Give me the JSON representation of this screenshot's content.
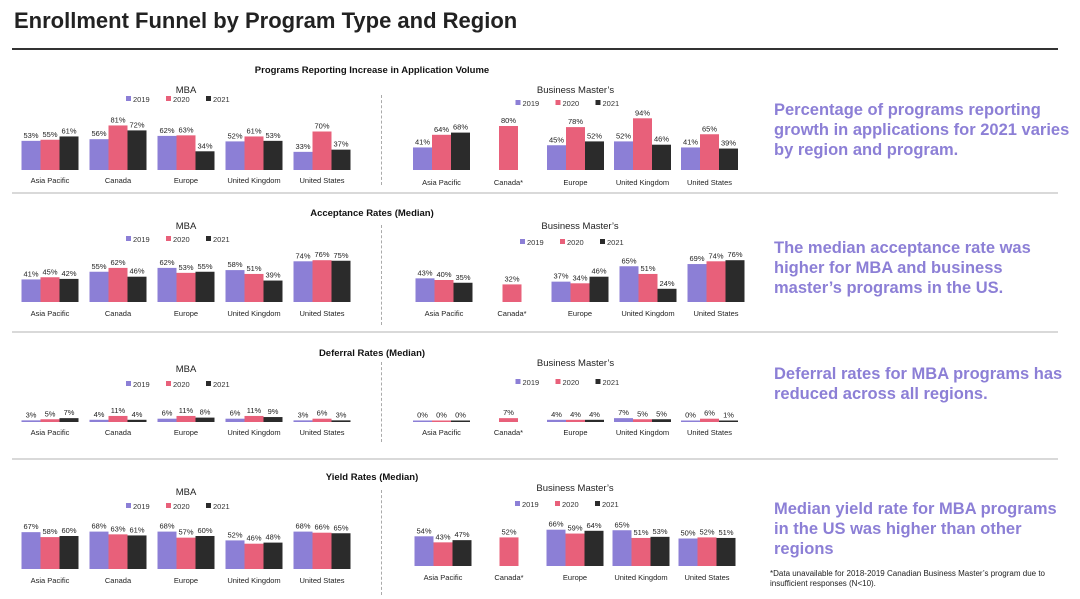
{
  "title": "Enrollment Funnel by Program Type and Region",
  "legend": [
    {
      "label": "2019",
      "color": "#8c7fd6"
    },
    {
      "label": "2020",
      "color": "#e8607a"
    },
    {
      "label": "2021",
      "color": "#2b2b2b"
    }
  ],
  "colors": {
    "y2019": "#8c7fd6",
    "y2020": "#e8607a",
    "y2021": "#2b2b2b",
    "callout": "#8c7fd6"
  },
  "callouts": [
    "Percentage of programs reporting growth in applications for 2021 varies by region and program.",
    "The median acceptance rate was higher for MBA and business master’s programs in the US.",
    "Deferral rates for MBA programs has reduced across all regions.",
    "Median yield rate for MBA programs in the US was higher than other regions"
  ],
  "footnote": "*Data unavailable for 2018-2019 Canadian Business Master’s program due to insufficient responses (N<10).",
  "chart_data": [
    {
      "type": "bar",
      "section": "Programs Reporting Increase in Application Volume",
      "title": "MBA",
      "categories": [
        "Asia Pacific",
        "Canada",
        "Europe",
        "United Kingdom",
        "United States"
      ],
      "series": [
        {
          "name": "2019",
          "values": [
            53,
            56,
            62,
            52,
            33
          ]
        },
        {
          "name": "2020",
          "values": [
            55,
            81,
            63,
            61,
            70
          ]
        },
        {
          "name": "2021",
          "values": [
            61,
            72,
            34,
            53,
            37
          ]
        }
      ],
      "ylim": [
        0,
        100
      ]
    },
    {
      "type": "bar",
      "section": "Programs Reporting Increase in Application Volume",
      "title": "Business Master’s",
      "categories": [
        "Asia Pacific",
        "Canada*",
        "Europe",
        "United Kingdom",
        "United States"
      ],
      "series": [
        {
          "name": "2019",
          "values": [
            41,
            null,
            45,
            52,
            41
          ]
        },
        {
          "name": "2020",
          "values": [
            64,
            80,
            78,
            94,
            65
          ]
        },
        {
          "name": "2021",
          "values": [
            68,
            null,
            52,
            46,
            39
          ]
        }
      ],
      "ylim": [
        0,
        100
      ]
    },
    {
      "type": "bar",
      "section": "Acceptance Rates (Median)",
      "title": "MBA",
      "categories": [
        "Asia Pacific",
        "Canada",
        "Europe",
        "United Kingdom",
        "United States"
      ],
      "series": [
        {
          "name": "2019",
          "values": [
            41,
            55,
            62,
            58,
            74
          ]
        },
        {
          "name": "2020",
          "values": [
            45,
            62,
            53,
            51,
            76
          ]
        },
        {
          "name": "2021",
          "values": [
            42,
            46,
            55,
            39,
            75
          ]
        }
      ],
      "ylim": [
        0,
        100
      ]
    },
    {
      "type": "bar",
      "section": "Acceptance Rates (Median)",
      "title": "Business Master’s",
      "categories": [
        "Asia Pacific",
        "Canada*",
        "Europe",
        "United Kingdom",
        "United States"
      ],
      "series": [
        {
          "name": "2019",
          "values": [
            43,
            null,
            37,
            65,
            69
          ]
        },
        {
          "name": "2020",
          "values": [
            40,
            32,
            34,
            51,
            74
          ]
        },
        {
          "name": "2021",
          "values": [
            35,
            null,
            46,
            24,
            76
          ]
        }
      ],
      "ylim": [
        0,
        100
      ]
    },
    {
      "type": "bar",
      "section": "Deferral Rates (Median)",
      "title": "MBA",
      "categories": [
        "Asia Pacific",
        "Canada",
        "Europe",
        "United Kingdom",
        "United States"
      ],
      "series": [
        {
          "name": "2019",
          "values": [
            3,
            4,
            6,
            6,
            3
          ]
        },
        {
          "name": "2020",
          "values": [
            5,
            11,
            11,
            11,
            6
          ]
        },
        {
          "name": "2021",
          "values": [
            7,
            4,
            8,
            9,
            3
          ]
        }
      ],
      "ylim": [
        0,
        100
      ]
    },
    {
      "type": "bar",
      "section": "Deferral Rates (Median)",
      "title": "Business Master’s",
      "categories": [
        "Asia Pacific",
        "Canada*",
        "Europe",
        "United Kingdom",
        "United States"
      ],
      "series": [
        {
          "name": "2019",
          "values": [
            0,
            null,
            4,
            7,
            0
          ]
        },
        {
          "name": "2020",
          "values": [
            0,
            7,
            4,
            5,
            6
          ]
        },
        {
          "name": "2021",
          "values": [
            0,
            null,
            4,
            5,
            1
          ]
        }
      ],
      "ylim": [
        0,
        100
      ]
    },
    {
      "type": "bar",
      "section": "Yield Rates (Median)",
      "title": "MBA",
      "categories": [
        "Asia Pacific",
        "Canada",
        "Europe",
        "United Kingdom",
        "United States"
      ],
      "series": [
        {
          "name": "2019",
          "values": [
            67,
            68,
            68,
            52,
            68
          ]
        },
        {
          "name": "2020",
          "values": [
            58,
            63,
            57,
            46,
            66
          ]
        },
        {
          "name": "2021",
          "values": [
            60,
            61,
            60,
            48,
            65
          ]
        }
      ],
      "ylim": [
        0,
        100
      ]
    },
    {
      "type": "bar",
      "section": "Yield Rates (Median)",
      "title": "Business Master’s",
      "categories": [
        "Asia Pacific",
        "Canada*",
        "Europe",
        "United Kingdom",
        "United States"
      ],
      "series": [
        {
          "name": "2019",
          "values": [
            54,
            null,
            66,
            65,
            50
          ]
        },
        {
          "name": "2020",
          "values": [
            43,
            52,
            59,
            51,
            52
          ]
        },
        {
          "name": "2021",
          "values": [
            47,
            null,
            64,
            53,
            51
          ]
        }
      ],
      "ylim": [
        0,
        100
      ]
    }
  ]
}
